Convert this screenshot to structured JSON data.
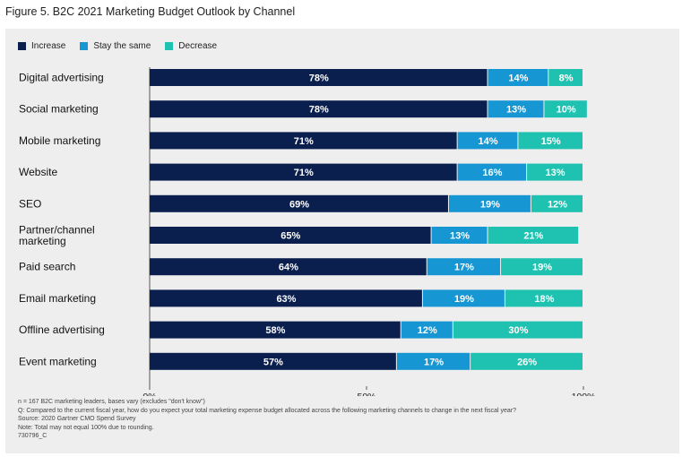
{
  "figure_title": "Figure 5. B2C 2021 Marketing Budget Outlook by Channel",
  "colors": {
    "increase": "#0b1f4e",
    "stay": "#1696d2",
    "decrease": "#1fc2b0",
    "background": "#eeeeee"
  },
  "chart_data": {
    "type": "bar",
    "orientation": "horizontal-stacked-100",
    "title": "Figure 5. B2C 2021 Marketing Budget Outlook by Channel",
    "categories": [
      "Digital advertising",
      "Social marketing",
      "Mobile marketing",
      "Website",
      "SEO",
      "Partner/channel marketing",
      "Paid search",
      "Email marketing",
      "Offline advertising",
      "Event marketing"
    ],
    "category_lines": [
      [
        "Digital advertising"
      ],
      [
        "Social marketing"
      ],
      [
        "Mobile marketing"
      ],
      [
        "Website"
      ],
      [
        "SEO"
      ],
      [
        "Partner/channel",
        "marketing"
      ],
      [
        "Paid search"
      ],
      [
        "Email marketing"
      ],
      [
        "Offline advertising"
      ],
      [
        "Event marketing"
      ]
    ],
    "series": [
      {
        "name": "Increase",
        "key": "increase",
        "values": [
          78,
          78,
          71,
          71,
          69,
          65,
          64,
          63,
          58,
          57
        ]
      },
      {
        "name": "Stay the same",
        "key": "stay",
        "values": [
          14,
          13,
          14,
          16,
          19,
          13,
          17,
          19,
          12,
          17
        ]
      },
      {
        "name": "Decrease",
        "key": "decrease",
        "values": [
          8,
          10,
          15,
          13,
          12,
          21,
          19,
          18,
          30,
          26
        ]
      }
    ],
    "xlim": [
      0,
      100
    ],
    "xticks": [
      0,
      50,
      100
    ],
    "xtick_labels": [
      "0%",
      "50%",
      "100%"
    ],
    "legend_position": "top-left",
    "value_suffix": "%"
  },
  "notes": [
    "n = 167 B2C marketing leaders, bases vary (excludes \"don't know\")",
    "Q: Compared to the current fiscal year, how do you expect your total marketing expense budget allocated across the following marketing channels to change in the next fiscal year?",
    "Source: 2020 Gartner CMO Spend Survey",
    "Note: Total may not equal 100% due to rounding.",
    "730796_C"
  ]
}
